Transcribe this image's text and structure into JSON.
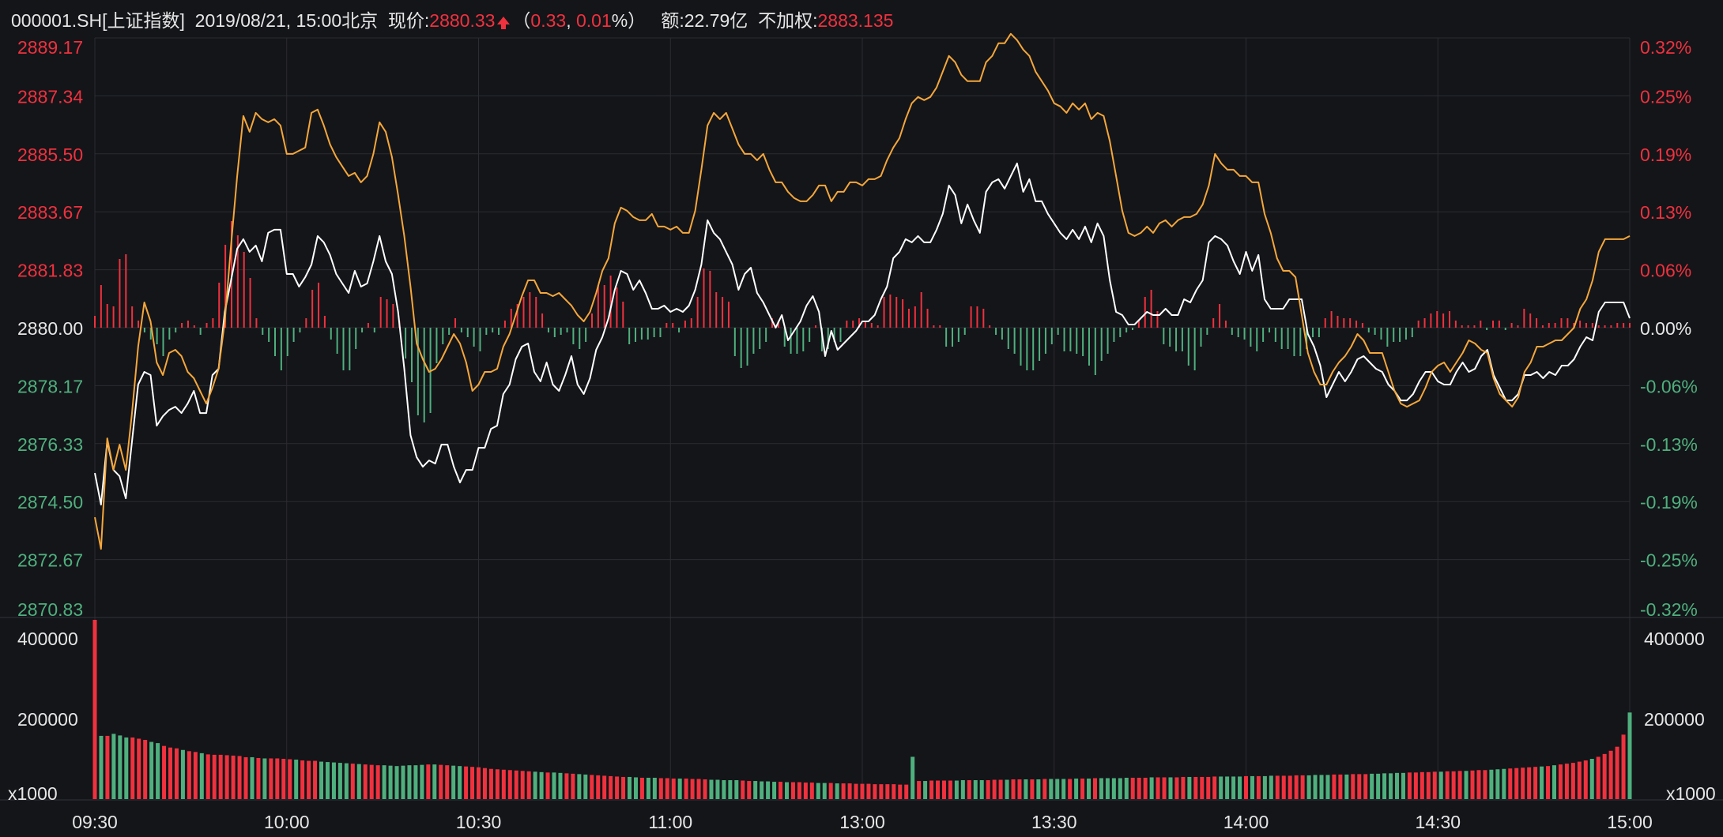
{
  "header": {
    "code": "000001.SH",
    "name": "[上证指数]",
    "datetime": "2019/08/21, 15:00北京",
    "price_label": "现价:",
    "price": "2880.33",
    "open_paren": "（",
    "change": "0.33",
    "comma": ", ",
    "change_pct": "0.01",
    "pct_close": "%）",
    "amount": "额:22.79亿",
    "unweighted_label": "不加权:",
    "unweighted": "2883.135"
  },
  "colors": {
    "background": "#141519",
    "up": "#f0313e",
    "down": "#4fb07e",
    "price_line": "#ffffff",
    "avg_line": "#f5a73a",
    "grid": "#2a2c31",
    "text": "#e6e6e6"
  },
  "chart_data": [
    {
      "type": "line",
      "title": "",
      "y_left_ticks": [
        "2889.17",
        "2887.34",
        "2885.50",
        "2883.67",
        "2881.83",
        "2880.00",
        "2878.17",
        "2876.33",
        "2874.50",
        "2872.67",
        "2870.83"
      ],
      "y_right_ticks": [
        "0.32%",
        "0.25%",
        "0.19%",
        "0.13%",
        "0.06%",
        "0.00%",
        "-0.06%",
        "-0.13%",
        "-0.19%",
        "-0.25%",
        "-0.32%"
      ],
      "ylim": [
        2870.83,
        2889.17
      ],
      "x_ticks": [
        "09:30",
        "10:00",
        "10:30",
        "11:00",
        "13:00",
        "13:30",
        "14:00",
        "14:30",
        "15:00"
      ],
      "series": [
        {
          "color": "#ffffff",
          "values": [
            2875.4,
            2874.4,
            2876.4,
            2875.5,
            2875.3,
            2874.6,
            2876.4,
            2878.2,
            2878.6,
            2878.5,
            2876.9,
            2877.2,
            2877.4,
            2877.5,
            2877.3,
            2877.6,
            2878.0,
            2877.3,
            2877.3,
            2878.5,
            2878.7,
            2880.5,
            2881.5,
            2882.5,
            2882.8,
            2882.4,
            2882.6,
            2882.1,
            2883.0,
            2883.1,
            2883.1,
            2881.7,
            2881.7,
            2881.3,
            2881.6,
            2882.0,
            2882.9,
            2882.7,
            2882.3,
            2881.7,
            2881.4,
            2881.1,
            2881.8,
            2881.3,
            2881.4,
            2882.1,
            2882.9,
            2882.1,
            2881.7,
            2880.5,
            2878.7,
            2876.6,
            2875.9,
            2875.6,
            2875.8,
            2875.7,
            2876.3,
            2876.3,
            2875.6,
            2875.1,
            2875.5,
            2875.5,
            2876.2,
            2876.2,
            2876.8,
            2876.9,
            2877.9,
            2878.2,
            2879.0,
            2879.4,
            2879.5,
            2878.6,
            2878.3,
            2878.9,
            2878.2,
            2878.0,
            2878.5,
            2879.1,
            2878.2,
            2877.9,
            2878.4,
            2879.3,
            2879.7,
            2880.3,
            2881.2,
            2881.8,
            2881.7,
            2881.2,
            2881.5,
            2881.1,
            2880.6,
            2880.6,
            2880.7,
            2880.5,
            2880.6,
            2880.5,
            2880.7,
            2881.2,
            2882.0,
            2883.4,
            2883.0,
            2882.8,
            2882.4,
            2882.0,
            2881.2,
            2881.7,
            2881.9,
            2881.1,
            2880.8,
            2880.4,
            2880.0,
            2880.4,
            2879.6,
            2879.9,
            2880.2,
            2880.7,
            2881.0,
            2880.5,
            2879.1,
            2879.9,
            2879.3,
            2879.5,
            2879.7,
            2879.9,
            2880.2,
            2880.2,
            2880.4,
            2880.9,
            2881.3,
            2882.2,
            2882.4,
            2882.8,
            2882.7,
            2882.9,
            2882.7,
            2882.7,
            2883.1,
            2883.6,
            2884.5,
            2884.2,
            2883.3,
            2883.9,
            2883.4,
            2883.0,
            2884.3,
            2884.6,
            2884.7,
            2884.4,
            2884.8,
            2885.2,
            2884.3,
            2884.7,
            2884.0,
            2884.0,
            2883.6,
            2883.3,
            2883.0,
            2882.8,
            2883.1,
            2882.8,
            2883.2,
            2882.7,
            2883.3,
            2882.9,
            2881.5,
            2880.5,
            2880.4,
            2880.1,
            2880.1,
            2880.3,
            2880.5,
            2880.4,
            2880.4,
            2880.6,
            2880.4,
            2880.4,
            2880.9,
            2880.8,
            2881.2,
            2881.5,
            2882.7,
            2882.9,
            2882.8,
            2882.6,
            2882.1,
            2881.7,
            2882.4,
            2881.8,
            2882.3,
            2880.9,
            2880.6,
            2880.6,
            2880.6,
            2880.9,
            2880.9,
            2880.9,
            2879.8,
            2879.4,
            2878.8,
            2877.8,
            2878.2,
            2878.6,
            2878.3,
            2878.6,
            2879.0,
            2879.1,
            2878.9,
            2878.7,
            2878.6,
            2878.2,
            2878.0,
            2877.7,
            2877.7,
            2877.9,
            2878.3,
            2878.6,
            2878.6,
            2878.3,
            2878.2,
            2878.2,
            2878.6,
            2878.9,
            2878.6,
            2878.7,
            2879.1,
            2879.3,
            2878.5,
            2878.1,
            2877.7,
            2877.7,
            2877.9,
            2878.5,
            2878.5,
            2878.6,
            2878.4,
            2878.6,
            2878.5,
            2878.8,
            2878.8,
            2879.0,
            2879.4,
            2879.7,
            2879.6,
            2880.5,
            2880.8,
            2880.8,
            2880.8,
            2880.8,
            2880.3
          ],
          "alt_values_note": ""
        },
        {
          "color": "#f5a73a",
          "values": [
            2874.0,
            2873.0,
            2876.5,
            2875.5,
            2876.3,
            2875.5,
            2877.3,
            2879.4,
            2880.8,
            2880.2,
            2878.9,
            2878.5,
            2879.2,
            2879.3,
            2879.1,
            2878.6,
            2878.4,
            2878.0,
            2877.6,
            2878.1,
            2878.7,
            2880.2,
            2882.6,
            2884.8,
            2886.7,
            2886.2,
            2886.8,
            2886.6,
            2886.5,
            2886.6,
            2886.4,
            2885.5,
            2885.5,
            2885.6,
            2885.7,
            2886.8,
            2886.9,
            2886.4,
            2885.8,
            2885.4,
            2885.1,
            2884.8,
            2884.9,
            2884.6,
            2884.8,
            2885.5,
            2886.5,
            2886.2,
            2885.4,
            2884.2,
            2882.9,
            2881.3,
            2879.5,
            2879.0,
            2878.6,
            2878.7,
            2879.0,
            2879.4,
            2879.8,
            2879.5,
            2878.9,
            2878.0,
            2878.2,
            2878.6,
            2878.6,
            2878.7,
            2879.4,
            2879.8,
            2880.4,
            2881.0,
            2881.5,
            2881.5,
            2881.1,
            2881.1,
            2881.0,
            2881.1,
            2880.9,
            2880.7,
            2880.4,
            2880.2,
            2880.5,
            2881.1,
            2881.8,
            2882.2,
            2883.3,
            2883.8,
            2883.7,
            2883.5,
            2883.4,
            2883.4,
            2883.6,
            2883.2,
            2883.2,
            2883.1,
            2883.2,
            2883.0,
            2883.0,
            2883.7,
            2885.0,
            2886.4,
            2886.8,
            2886.6,
            2886.8,
            2886.3,
            2885.8,
            2885.5,
            2885.5,
            2885.3,
            2885.5,
            2885.0,
            2884.6,
            2884.6,
            2884.3,
            2884.1,
            2884.0,
            2884.0,
            2884.2,
            2884.5,
            2884.5,
            2884.0,
            2884.3,
            2884.3,
            2884.6,
            2884.6,
            2884.5,
            2884.7,
            2884.7,
            2884.8,
            2885.3,
            2885.7,
            2886.0,
            2886.6,
            2887.1,
            2887.3,
            2887.2,
            2887.3,
            2887.6,
            2888.1,
            2888.6,
            2888.4,
            2888.0,
            2887.8,
            2887.8,
            2887.8,
            2888.4,
            2888.6,
            2889.0,
            2889.0,
            2889.3,
            2889.1,
            2888.8,
            2888.6,
            2888.1,
            2887.8,
            2887.5,
            2887.1,
            2887.0,
            2886.8,
            2887.1,
            2886.9,
            2887.1,
            2886.6,
            2886.8,
            2886.7,
            2885.9,
            2884.8,
            2883.7,
            2883.0,
            2882.9,
            2883.0,
            2883.2,
            2883.0,
            2883.3,
            2883.4,
            2883.2,
            2883.4,
            2883.5,
            2883.5,
            2883.6,
            2883.9,
            2884.5,
            2885.5,
            2885.2,
            2885.0,
            2885.0,
            2884.8,
            2884.8,
            2884.6,
            2884.6,
            2883.6,
            2883.0,
            2882.2,
            2881.8,
            2881.8,
            2881.6,
            2880.4,
            2879.2,
            2878.6,
            2878.2,
            2878.2,
            2878.6,
            2878.9,
            2879.1,
            2879.4,
            2879.8,
            2879.6,
            2879.2,
            2879.2,
            2879.2,
            2878.6,
            2878.0,
            2877.6,
            2877.5,
            2877.6,
            2877.7,
            2878.1,
            2878.6,
            2878.8,
            2878.9,
            2878.6,
            2878.9,
            2879.2,
            2879.6,
            2879.5,
            2879.3,
            2879.2,
            2878.4,
            2877.9,
            2877.7,
            2877.5,
            2877.8,
            2878.6,
            2878.9,
            2879.4,
            2879.4,
            2879.5,
            2879.6,
            2879.6,
            2879.8,
            2880.0,
            2880.6,
            2880.9,
            2881.5,
            2882.4,
            2882.8,
            2882.8,
            2882.8,
            2882.8,
            2882.9
          ]
        }
      ],
      "diff_bars": [
        0.5,
        1.8,
        1.0,
        0.9,
        2.9,
        3.1,
        0.9,
        0.3,
        -0.2,
        -0.5,
        -0.7,
        -1.2,
        -0.5,
        -0.2,
        0.2,
        0.3,
        0.1,
        -0.3,
        0.2,
        0.4,
        1.9,
        3.5,
        4.5,
        3.9,
        3.2,
        2.1,
        0.4,
        -0.3,
        -0.6,
        -1.2,
        -1.8,
        -1.2,
        -0.6,
        -0.2,
        0.4,
        1.6,
        1.9,
        0.5,
        -0.5,
        -1.1,
        -1.8,
        -1.8,
        -0.9,
        -0.2,
        0.2,
        -0.2,
        1.3,
        1.2,
        1.0,
        0.3,
        -1.3,
        -2.3,
        -3.7,
        -4.0,
        -3.6,
        -1.5,
        -0.7,
        -0.3,
        0.4,
        -0.2,
        -0.4,
        -0.8,
        -1.0,
        -0.3,
        -0.2,
        -0.3,
        0.3,
        0.8,
        1.0,
        1.3,
        1.5,
        1.3,
        0.6,
        -0.2,
        -0.4,
        -0.3,
        -0.2,
        -0.7,
        -0.9,
        -0.6,
        0.6,
        1.8,
        1.8,
        2.2,
        1.7,
        1.1,
        -0.7,
        -0.6,
        -0.5,
        -0.5,
        -0.4,
        -0.4,
        0.2,
        0.2,
        -0.2,
        0.3,
        0.4,
        1.3,
        2.5,
        2.4,
        1.5,
        1.3,
        1.1,
        -1.2,
        -1.7,
        -1.6,
        -1.1,
        -0.9,
        -0.6,
        0.4,
        0.3,
        -0.8,
        -1.1,
        -1.1,
        -1.0,
        -0.6,
        0.1,
        -1.0,
        -0.9,
        -0.6,
        -0.6,
        0.3,
        0.3,
        0.4,
        0.3,
        0.2,
        0.1,
        1.3,
        1.4,
        1.3,
        1.2,
        0.8,
        0.9,
        1.5,
        0.8,
        0.1,
        0.1,
        -0.8,
        -0.8,
        -0.6,
        -0.3,
        0.9,
        0.9,
        0.8,
        0.1,
        -0.3,
        -0.5,
        -0.9,
        -1.1,
        -1.6,
        -1.8,
        -1.8,
        -1.4,
        -1.1,
        -0.7,
        -0.3,
        -1.0,
        -1.0,
        -1.1,
        -1.2,
        -1.6,
        -2.0,
        -1.4,
        -1.1,
        -0.6,
        -0.4,
        -0.2,
        -0.1,
        0.3,
        1.3,
        1.6,
        0.7,
        -0.7,
        -0.8,
        -1.0,
        -1.0,
        -1.6,
        -1.8,
        -0.8,
        -0.3,
        0.4,
        1.0,
        0.3,
        -0.3,
        -0.4,
        -0.5,
        -0.8,
        -1.0,
        -0.6,
        -0.2,
        -0.6,
        -0.9,
        -0.9,
        -1.2,
        -1.2,
        -0.9,
        -0.4,
        -0.4,
        0.4,
        0.7,
        0.5,
        0.4,
        0.4,
        0.3,
        0.2,
        -0.2,
        -0.3,
        -0.5,
        -0.8,
        -0.6,
        -0.6,
        -0.5,
        -0.4,
        0.3,
        0.4,
        0.6,
        0.7,
        0.6,
        0.7,
        0.3,
        0.1,
        0.1,
        0.1,
        0.3,
        -0.1,
        0.3,
        0.3,
        -0.1,
        0.2,
        0.1,
        0.8,
        0.6,
        0.4,
        0.1,
        0.2,
        0.2,
        0.4,
        0.4,
        0.2,
        0.3,
        0.2,
        0.2,
        0.1,
        0.1,
        0.1,
        0.2,
        0.2,
        0.2
      ]
    },
    {
      "type": "bar",
      "title": "",
      "unit_label": "x1000",
      "y_ticks": [
        "400000",
        "200000"
      ],
      "ylim": [
        0,
        445000
      ],
      "values": [
        445000,
        157000,
        157000,
        162000,
        158000,
        153000,
        153000,
        150000,
        147000,
        142000,
        139000,
        132000,
        128000,
        126000,
        122000,
        119000,
        117000,
        114000,
        111000,
        110000,
        110000,
        109000,
        108000,
        107000,
        104000,
        104000,
        102000,
        101000,
        101000,
        101000,
        100000,
        99000,
        98000,
        96000,
        95000,
        95000,
        93000,
        92000,
        91000,
        90000,
        89000,
        88000,
        87000,
        86000,
        85000,
        84000,
        84000,
        83000,
        82000,
        83000,
        84000,
        84000,
        85000,
        86000,
        86000,
        85000,
        84000,
        83000,
        82000,
        81000,
        80000,
        79000,
        77000,
        75000,
        74000,
        73000,
        72000,
        71000,
        70000,
        69000,
        68000,
        67000,
        66000,
        66000,
        65000,
        64000,
        63000,
        62000,
        61000,
        60000,
        59000,
        58000,
        57000,
        56000,
        55000,
        55000,
        54000,
        53000,
        53000,
        53000,
        52000,
        52000,
        51000,
        51000,
        51000,
        50000,
        50000,
        49000,
        48000,
        48000,
        47000,
        47000,
        47000,
        46000,
        45000,
        45000,
        44000,
        44000,
        43000,
        43000,
        42000,
        42000,
        42000,
        41000,
        41000,
        40000,
        40000,
        40000,
        39000,
        39000,
        39000,
        38000,
        38000,
        38000,
        37000,
        37000,
        37000,
        37000,
        36000,
        36000,
        105000,
        45000,
        45000,
        46000,
        46000,
        46000,
        46000,
        46000,
        47000,
        47000,
        47000,
        47000,
        47000,
        48000,
        48000,
        48000,
        49000,
        49000,
        49000,
        49000,
        49000,
        50000,
        50000,
        50000,
        50000,
        50000,
        51000,
        51000,
        51000,
        52000,
        52000,
        52000,
        52000,
        52000,
        53000,
        53000,
        53000,
        53000,
        54000,
        54000,
        54000,
        54000,
        54000,
        55000,
        55000,
        55000,
        55000,
        55000,
        56000,
        56000,
        56000,
        56000,
        56000,
        57000,
        57000,
        57000,
        57000,
        58000,
        58000,
        58000,
        58000,
        59000,
        59000,
        59000,
        60000,
        60000,
        60000,
        61000,
        61000,
        61000,
        62000,
        62000,
        62000,
        63000,
        63000,
        64000,
        64000,
        65000,
        65000,
        66000,
        66000,
        67000,
        67000,
        68000,
        68000,
        69000,
        69000,
        70000,
        70000,
        71000,
        72000,
        72000,
        73000,
        74000,
        75000,
        76000,
        77000,
        78000,
        79000,
        80000,
        81000,
        82000,
        84000,
        86000,
        88000,
        90000,
        93000,
        96000,
        100000,
        105000,
        112000,
        120000,
        130000,
        160000,
        215000
      ],
      "alt_note": ""
    }
  ]
}
